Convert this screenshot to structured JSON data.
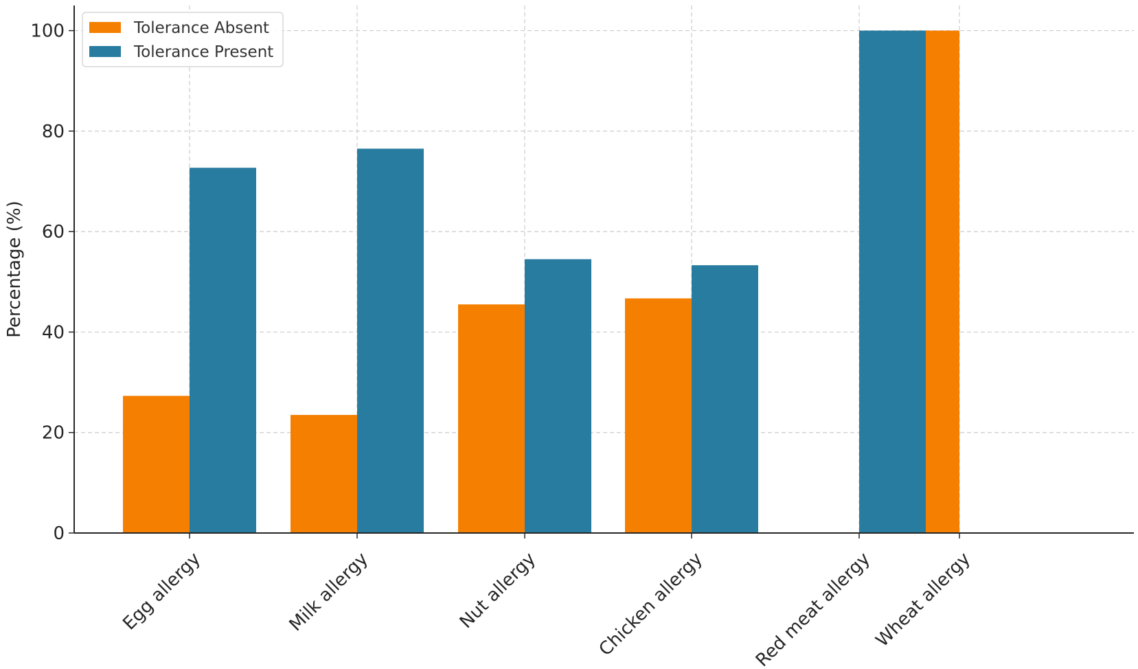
{
  "chart_data": {
    "type": "bar",
    "categories": [
      "Egg allergy",
      "Milk allergy",
      "Nut allergy",
      "Chicken allergy",
      "Red meat allergy",
      "Wheat allergy"
    ],
    "series": [
      {
        "name": "Tolerance Absent",
        "color": "#f57f00",
        "values": [
          27.3,
          23.5,
          45.5,
          46.7,
          0,
          100
        ]
      },
      {
        "name": "Tolerance Present",
        "color": "#277ca0",
        "values": [
          72.7,
          76.5,
          54.5,
          53.3,
          100,
          0
        ]
      }
    ],
    "title": "",
    "xlabel": "",
    "ylabel": "Percentage (%)",
    "ylim": [
      0,
      105
    ],
    "yticks": [
      0,
      20,
      40,
      60,
      80,
      100
    ],
    "grid": true,
    "legend_position": "top-left"
  }
}
